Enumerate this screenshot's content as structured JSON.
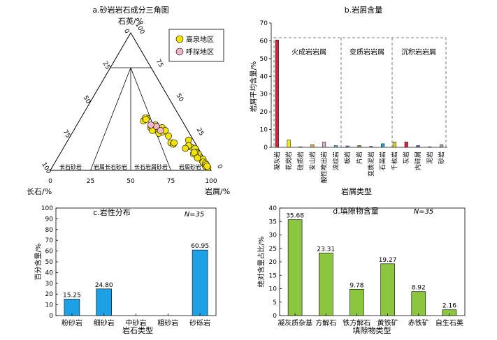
{
  "chart_data": [
    {
      "type": "scatter",
      "subtype": "ternary",
      "title": "a.砂岩岩石成分三角图",
      "apex_labels": {
        "top": "石英/%",
        "left": "长石/%",
        "right": "岩屑/%"
      },
      "axis_ticks": [
        0,
        25,
        50,
        75,
        100
      ],
      "field_labels": [
        "长石砂岩",
        "岩屑长石砂岩",
        "长石岩屑砂岩",
        "岩屑砂岩"
      ],
      "legend": [
        "高泉地区",
        "呼探地区"
      ],
      "colors": {
        "gaoquan": "#f5e400",
        "hutan": "#f2b7c4"
      },
      "series": [
        {
          "name": "高泉地区",
          "points": [
            [
              22,
              3,
              75
            ],
            [
              17,
              4,
              79
            ],
            [
              16,
              2,
              82
            ],
            [
              12,
              5,
              83
            ],
            [
              18,
              5,
              77
            ],
            [
              12,
              2,
              86
            ],
            [
              13,
              3,
              84
            ],
            [
              13,
              4,
              83
            ],
            [
              7,
              2,
              91
            ],
            [
              8,
              1,
              91
            ],
            [
              9,
              4,
              87
            ],
            [
              5,
              2,
              93
            ],
            [
              6,
              2,
              92
            ],
            [
              5,
              1,
              94
            ],
            [
              3,
              2,
              95
            ],
            [
              4,
              1,
              95
            ],
            [
              2,
              1,
              97
            ],
            [
              3,
              1,
              96
            ],
            [
              36,
              24,
              40
            ],
            [
              38,
              21,
              41
            ],
            [
              38,
              22,
              40
            ],
            [
              37,
              22,
              41
            ],
            [
              31,
              22,
              47
            ],
            [
              31,
              21,
              48
            ],
            [
              30,
              20,
              50
            ],
            [
              29,
              22,
              49
            ],
            [
              33,
              18,
              49
            ],
            [
              27,
              19,
              54
            ],
            [
              31,
              15,
              54
            ],
            [
              28,
              16,
              56
            ],
            [
              29,
              14,
              57
            ],
            [
              25,
              14,
              61
            ],
            [
              20,
              14,
              66
            ],
            [
              20,
              15,
              65
            ],
            [
              19,
              14,
              67
            ],
            [
              20,
              13,
              67
            ],
            [
              16,
              8,
              76
            ]
          ]
        },
        {
          "name": "呼探地区",
          "points": [
            [
              32,
              18,
              50
            ],
            [
              29,
              17,
              54
            ],
            [
              33,
              21,
              46
            ]
          ]
        }
      ]
    },
    {
      "type": "bar",
      "title": "b.岩屑含量",
      "xlabel": "岩屑类型",
      "ylabel": "岩屑平均含量/%",
      "ylim": [
        0,
        70
      ],
      "yticks": [
        0,
        10,
        20,
        30,
        40,
        50,
        60,
        70
      ],
      "categories": [
        "凝灰岩",
        "花岗岩",
        "硅质岩",
        "安山岩",
        "酸性喷出岩",
        "流纹岩",
        "板岩",
        "片岩",
        "变质泥岩",
        "石英岩",
        "千枚岩",
        "灰岩",
        "内碎屑",
        "泥岩",
        "砂岩"
      ],
      "values": [
        60.5,
        4.2,
        0.3,
        1.5,
        3.0,
        1.0,
        0.8,
        1.0,
        0.5,
        2.0,
        3.0,
        3.0,
        1.0,
        0.3,
        1.5
      ],
      "colors": [
        "#d3253a",
        "#f2ea0f",
        "#a2c3e8",
        "#f0a35c",
        "#d8b1d3",
        "#5fc3cb",
        "#7c8ec4",
        "#6f9a4e",
        "#8f63a9",
        "#2a9fd8",
        "#d0d930",
        "#d0233f",
        "#6a5fa6",
        "#9e9e9e",
        "#a8a8a8"
      ],
      "groups": [
        "火成岩岩屑",
        "变质岩岩屑",
        "沉积岩岩屑"
      ]
    },
    {
      "type": "bar",
      "title": "c.岩性分布",
      "note": "N=35",
      "xlabel": "岩石类型",
      "ylabel": "百分含量/%",
      "ylim": [
        0,
        100
      ],
      "yticks": [
        0,
        10,
        20,
        30,
        40,
        50,
        60,
        70,
        80,
        90,
        100
      ],
      "categories": [
        "粉砂岩",
        "细砂岩",
        "中砂岩",
        "粗砂岩",
        "砂砾岩"
      ],
      "values": [
        15.25,
        24.8,
        0,
        0,
        60.95
      ],
      "data_labels": [
        "15.25",
        "24.80",
        "",
        "",
        "60.95"
      ],
      "color": "#1ea0e6"
    },
    {
      "type": "bar",
      "title": "d.填隙物含量",
      "note": "N=35",
      "xlabel": "填隙物类型",
      "ylabel": "绝对含量占比/%",
      "ylim": [
        0,
        40
      ],
      "yticks": [
        0,
        5,
        10,
        15,
        20,
        25,
        30,
        35,
        40
      ],
      "categories": [
        "凝灰质杂基",
        "方解石",
        "铁方解石",
        "黄铁矿",
        "赤铁矿",
        "自生石英"
      ],
      "values": [
        35.68,
        23.31,
        9.78,
        19.27,
        8.92,
        2.16
      ],
      "data_labels": [
        "35.68",
        "23.31",
        "9.78",
        "19.27",
        "8.92",
        "2.16"
      ],
      "color": "#8cc63f"
    }
  ]
}
